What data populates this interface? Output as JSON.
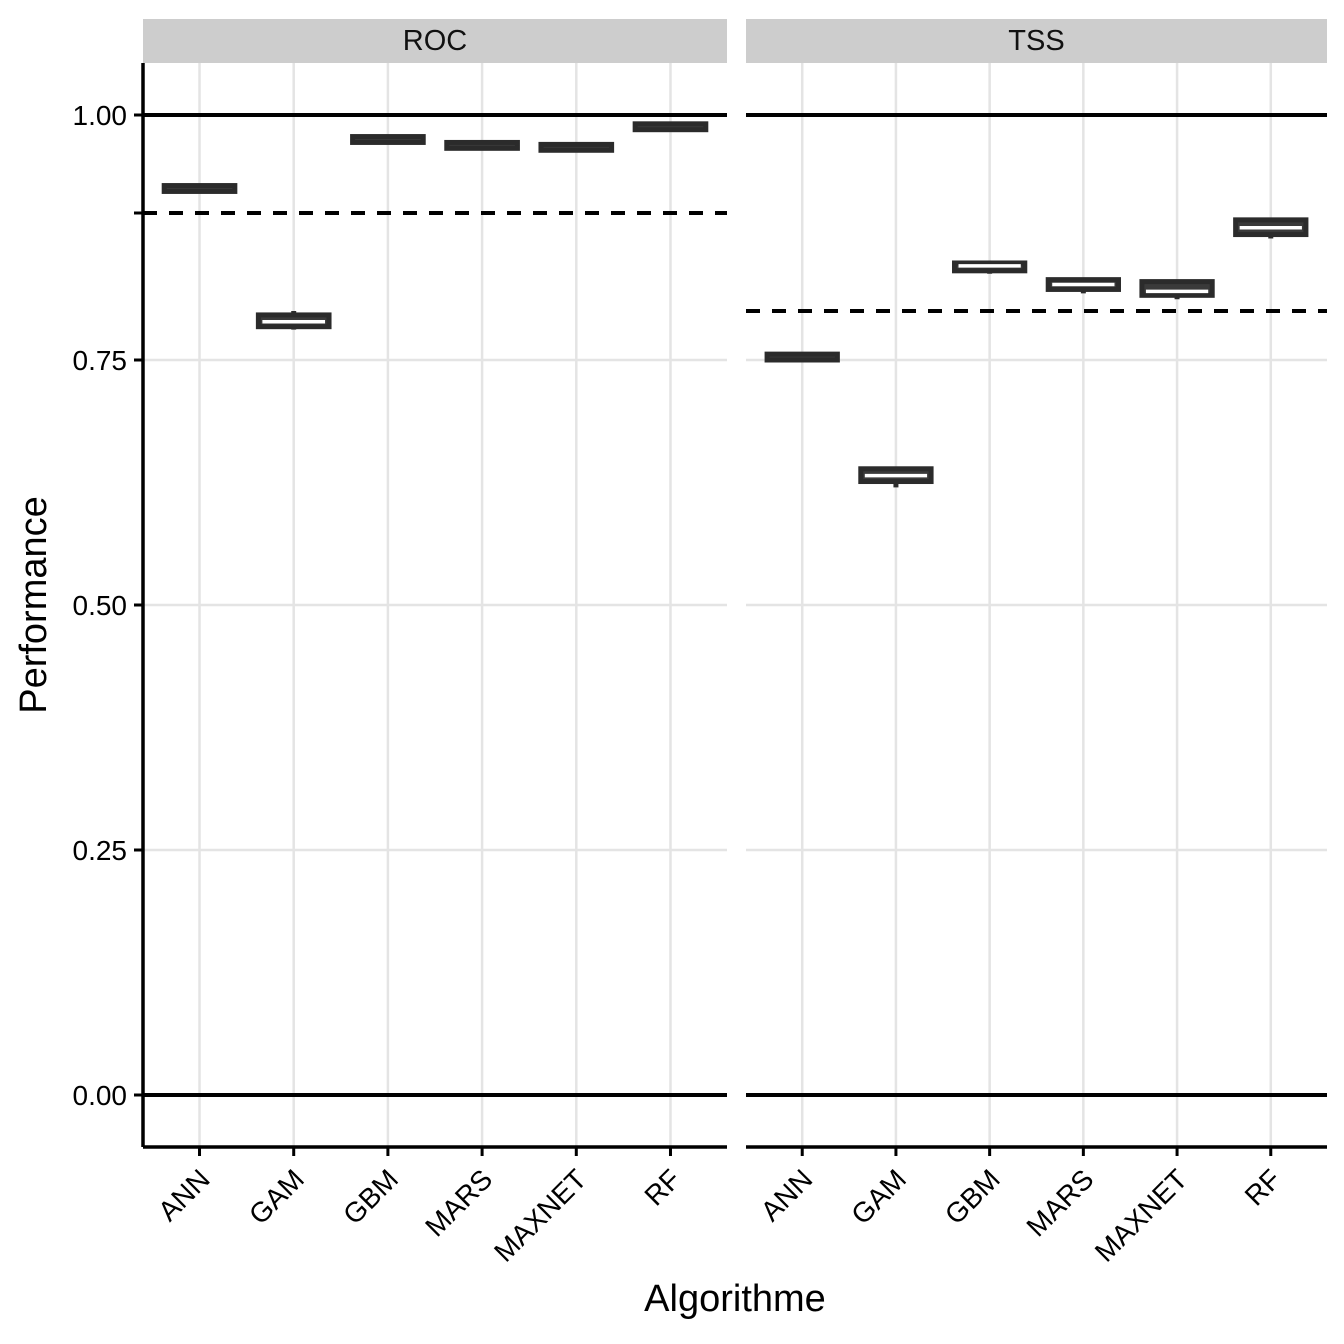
{
  "chart_data": {
    "type": "boxplot",
    "title": "",
    "categories": [
      "ANN",
      "GAM",
      "GBM",
      "MARS",
      "MAXNET",
      "RF"
    ],
    "x_axis": {
      "label": "Algorithme"
    },
    "y_axis": {
      "label": "Performance",
      "range": [
        0,
        1
      ],
      "ticks": [
        {
          "value": 1.0,
          "label": "1.00"
        },
        {
          "value": 0.9,
          "label": ""
        },
        {
          "value": 0.75,
          "label": "0.75"
        },
        {
          "value": 0.5,
          "label": "0.50"
        },
        {
          "value": 0.25,
          "label": "0.25"
        },
        {
          "value": 0.0,
          "label": "0.00"
        }
      ],
      "gridlines_y": [
        0.75,
        0.5,
        0.25
      ]
    },
    "reference_lines_solid": [
      1.0,
      0.0
    ],
    "legend": "none",
    "grid": "major-light",
    "facets": [
      {
        "label": "ROC",
        "dashed_reference_line": 0.9,
        "boxes": [
          {
            "category": "ANN",
            "low": 0.921,
            "q1": 0.922,
            "median": 0.925,
            "q3": 0.928,
            "high": 0.929
          },
          {
            "category": "GAM",
            "low": 0.781,
            "q1": 0.784,
            "median": 0.789,
            "q3": 0.796,
            "high": 0.8
          },
          {
            "category": "GBM",
            "low": 0.971,
            "q1": 0.972,
            "median": 0.975,
            "q3": 0.978,
            "high": 0.979
          },
          {
            "category": "MARS",
            "low": 0.965,
            "q1": 0.966,
            "median": 0.969,
            "q3": 0.972,
            "high": 0.973
          },
          {
            "category": "MAXNET",
            "low": 0.963,
            "q1": 0.964,
            "median": 0.967,
            "q3": 0.97,
            "high": 0.971
          },
          {
            "category": "RF",
            "low": 0.984,
            "q1": 0.985,
            "median": 0.988,
            "q3": 0.991,
            "high": 0.992
          }
        ]
      },
      {
        "label": "TSS",
        "dashed_reference_line": 0.8,
        "boxes": [
          {
            "category": "ANN",
            "low": 0.749,
            "q1": 0.75,
            "median": 0.753,
            "q3": 0.756,
            "high": 0.757
          },
          {
            "category": "GAM",
            "low": 0.62,
            "q1": 0.626,
            "median": 0.632,
            "q3": 0.639,
            "high": 0.641
          },
          {
            "category": "GBM",
            "low": 0.838,
            "q1": 0.841,
            "median": 0.846,
            "q3": 0.849,
            "high": 0.851
          },
          {
            "category": "MARS",
            "low": 0.818,
            "q1": 0.822,
            "median": 0.827,
            "q3": 0.832,
            "high": 0.833
          },
          {
            "category": "MAXNET",
            "low": 0.812,
            "q1": 0.816,
            "median": 0.82,
            "q3": 0.83,
            "high": 0.832
          },
          {
            "category": "RF",
            "low": 0.874,
            "q1": 0.878,
            "median": 0.885,
            "q3": 0.893,
            "high": 0.894
          }
        ]
      }
    ],
    "colors": {
      "box_fill": "#3a3a3a",
      "box_border": "#2b2b2b",
      "median_line": "#ffffff",
      "gridline": "#e4e4e4",
      "strip_background": "#cdcdcd",
      "axis_line": "#000000",
      "text": "#000000",
      "reference_line": "#000000"
    }
  }
}
